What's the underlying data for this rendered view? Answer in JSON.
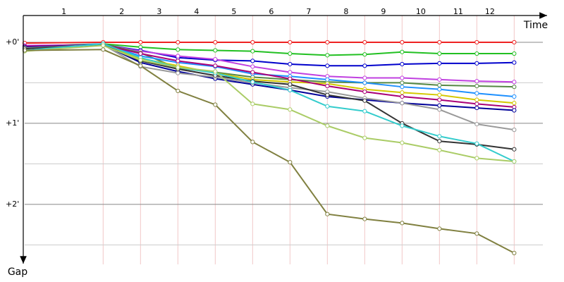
{
  "chart_data": {
    "type": "line",
    "x_label": "Time",
    "y_label": "Gap",
    "x": [
      0,
      2.1,
      3.1,
      4.1,
      5.1,
      6.1,
      7.1,
      8.1,
      9.1,
      10.1,
      11.1,
      12.1,
      13.1
    ],
    "xlim": [
      0,
      14.15
    ],
    "xticks": [
      {
        "value": 1.05,
        "label": "1"
      },
      {
        "value": 2.6,
        "label": "2"
      },
      {
        "value": 3.6,
        "label": "3"
      },
      {
        "value": 4.6,
        "label": "4"
      },
      {
        "value": 5.6,
        "label": "5"
      },
      {
        "value": 6.6,
        "label": "6"
      },
      {
        "value": 7.6,
        "label": "7"
      },
      {
        "value": 8.6,
        "label": "8"
      },
      {
        "value": 9.6,
        "label": "9"
      },
      {
        "value": 10.6,
        "label": "10"
      },
      {
        "value": 11.6,
        "label": "11"
      },
      {
        "value": 12.45,
        "label": "12"
      }
    ],
    "ylim": [
      -0.33,
      2.74
    ],
    "yticks": [
      {
        "value": 0,
        "label": "+0'"
      },
      {
        "value": 1,
        "label": "+1'"
      },
      {
        "value": 2,
        "label": "+2'"
      }
    ],
    "minor_grid": [
      0.5,
      1.5,
      2.5
    ],
    "grid": true,
    "series": [
      {
        "color": "#ee2222",
        "values": [
          0.01,
          0,
          0,
          0,
          0,
          0,
          0,
          0,
          0,
          0,
          0,
          0,
          0
        ]
      },
      {
        "color": "#22c022",
        "values": [
          0.05,
          0.02,
          0.06,
          0.09,
          0.1,
          0.11,
          0.14,
          0.16,
          0.15,
          0.12,
          0.14,
          0.14,
          0.14
        ]
      },
      {
        "color": "#0000cc",
        "values": [
          0.07,
          0.03,
          0.1,
          0.19,
          0.22,
          0.23,
          0.27,
          0.29,
          0.29,
          0.27,
          0.26,
          0.26,
          0.25
        ]
      },
      {
        "color": "#c040e0",
        "values": [
          0.04,
          0.03,
          0.11,
          0.17,
          0.21,
          0.3,
          0.37,
          0.42,
          0.44,
          0.44,
          0.46,
          0.48,
          0.49
        ]
      },
      {
        "color": "#558844",
        "values": [
          0.08,
          0.02,
          0.13,
          0.32,
          0.37,
          0.43,
          0.46,
          0.49,
          0.5,
          0.5,
          0.53,
          0.54,
          0.55
        ]
      },
      {
        "color": "#1e90ff",
        "values": [
          0.06,
          0.02,
          0.17,
          0.25,
          0.3,
          0.39,
          0.42,
          0.46,
          0.5,
          0.55,
          0.58,
          0.63,
          0.67
        ]
      },
      {
        "color": "#d4c800",
        "values": [
          0.06,
          0.03,
          0.2,
          0.29,
          0.38,
          0.46,
          0.49,
          0.51,
          0.58,
          0.62,
          0.65,
          0.71,
          0.75
        ]
      },
      {
        "color": "#aa0077",
        "values": [
          0.05,
          0.03,
          0.14,
          0.23,
          0.29,
          0.37,
          0.45,
          0.54,
          0.61,
          0.67,
          0.71,
          0.76,
          0.8
        ]
      },
      {
        "color": "#000099",
        "values": [
          0.06,
          0.03,
          0.25,
          0.36,
          0.45,
          0.52,
          0.59,
          0.67,
          0.71,
          0.75,
          0.78,
          0.81,
          0.84
        ]
      },
      {
        "color": "#999999",
        "values": [
          0.07,
          0.03,
          0.3,
          0.38,
          0.43,
          0.5,
          0.56,
          0.61,
          0.69,
          0.75,
          0.83,
          1.01,
          1.08
        ]
      },
      {
        "color": "#333333",
        "values": [
          0.08,
          0.03,
          0.23,
          0.33,
          0.41,
          0.48,
          0.52,
          0.65,
          0.72,
          1.0,
          1.22,
          1.26,
          1.32
        ]
      },
      {
        "color": "#33cccc",
        "values": [
          0.1,
          0.02,
          0.19,
          0.31,
          0.38,
          0.49,
          0.59,
          0.79,
          0.85,
          1.03,
          1.16,
          1.25,
          1.47
        ]
      },
      {
        "color": "#aacc66",
        "values": [
          0.11,
          0.04,
          0.22,
          0.31,
          0.36,
          0.76,
          0.83,
          1.03,
          1.18,
          1.24,
          1.33,
          1.43,
          1.47
        ]
      },
      {
        "color": "#808040",
        "values": [
          0.1,
          0.09,
          0.29,
          0.6,
          0.77,
          1.23,
          1.48,
          2.12,
          2.18,
          2.23,
          2.3,
          2.36,
          2.6
        ]
      }
    ]
  }
}
